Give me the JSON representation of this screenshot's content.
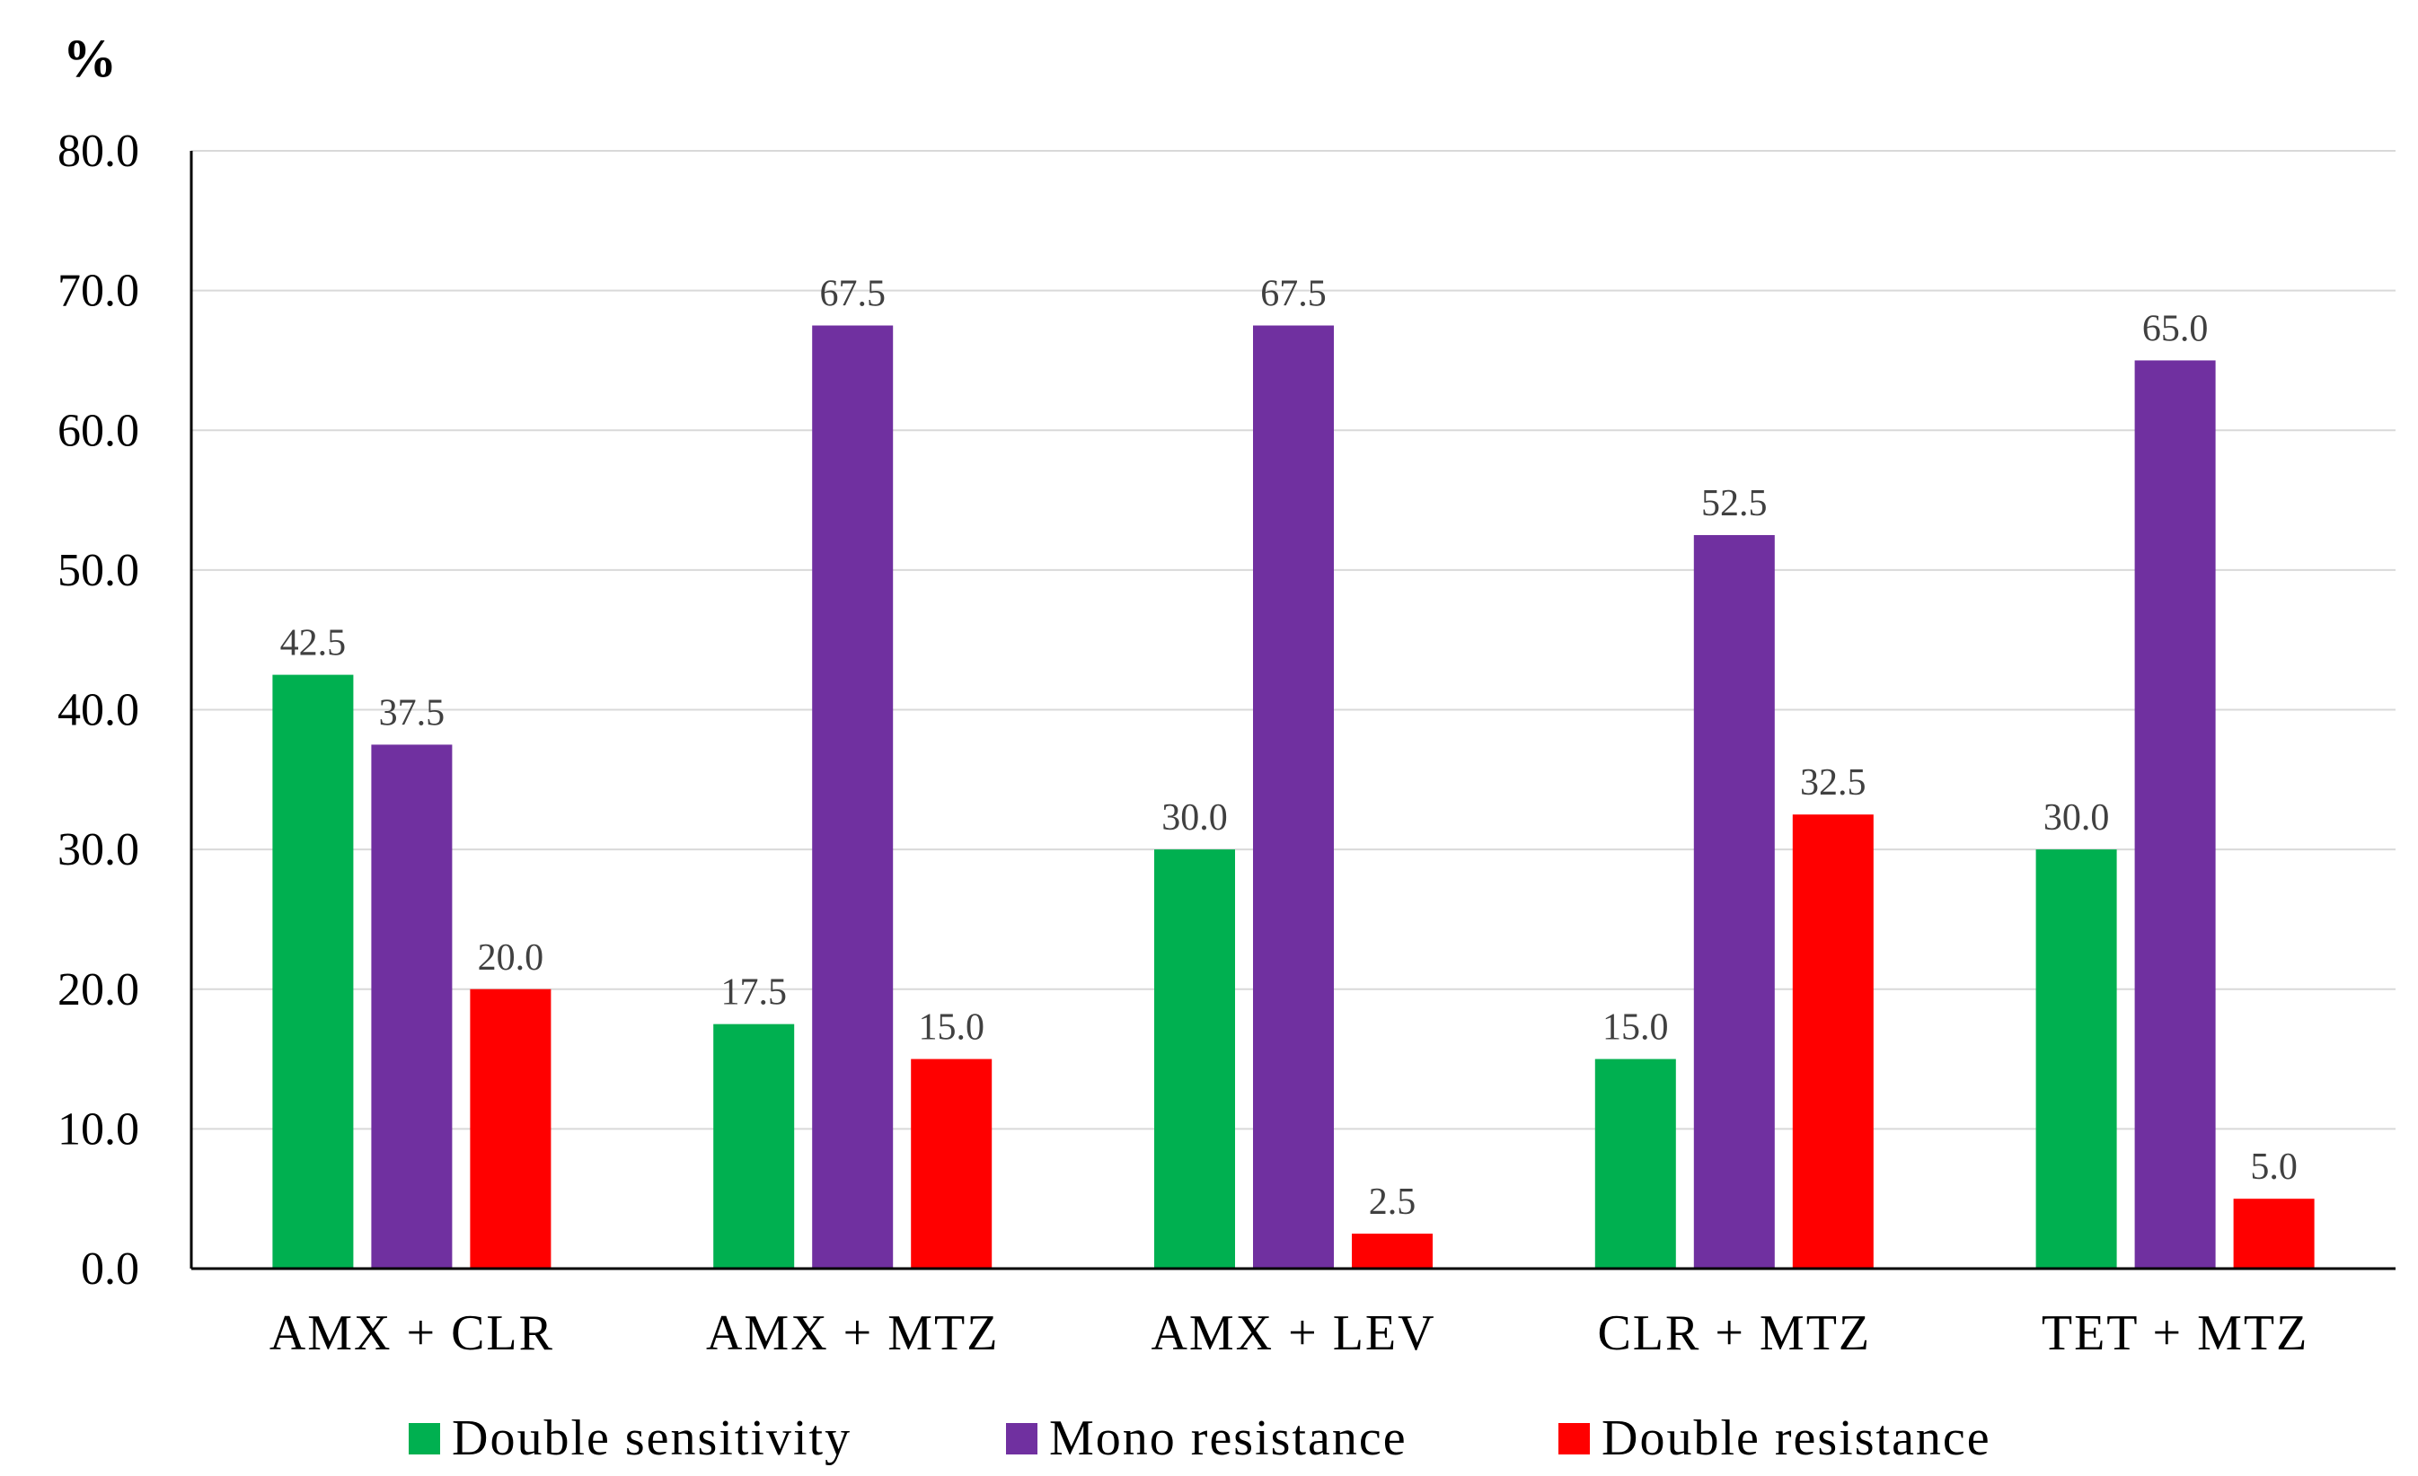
{
  "chart_data": {
    "type": "bar",
    "title": "",
    "xlabel": "",
    "ylabel": "%",
    "ylim": [
      0,
      80
    ],
    "yticks": [
      "0.0",
      "10.0",
      "20.0",
      "30.0",
      "40.0",
      "50.0",
      "60.0",
      "70.0",
      "80.0"
    ],
    "grid": true,
    "legend_position": "bottom",
    "categories": [
      "AMX + CLR",
      "AMX + MTZ",
      "AMX + LEV",
      "CLR + MTZ",
      "TET + MTZ"
    ],
    "series": [
      {
        "name": "Double sensitivity",
        "color": "#00b050",
        "values": [
          42.5,
          17.5,
          30.0,
          15.0,
          30.0
        ],
        "labels": [
          "42.5",
          "17.5",
          "30.0",
          "15.0",
          "30.0"
        ]
      },
      {
        "name": "Mono resistance",
        "color": "#7030a0",
        "values": [
          37.5,
          67.5,
          67.5,
          52.5,
          65.0
        ],
        "labels": [
          "37.5",
          "67.5",
          "67.5",
          "52.5",
          "65.0"
        ]
      },
      {
        "name": "Double resistance",
        "color": "#ff0000",
        "values": [
          20.0,
          15.0,
          2.5,
          32.5,
          5.0
        ],
        "labels": [
          "20.0",
          "15.0",
          "2.5",
          "32.5",
          "5.0"
        ]
      }
    ]
  }
}
